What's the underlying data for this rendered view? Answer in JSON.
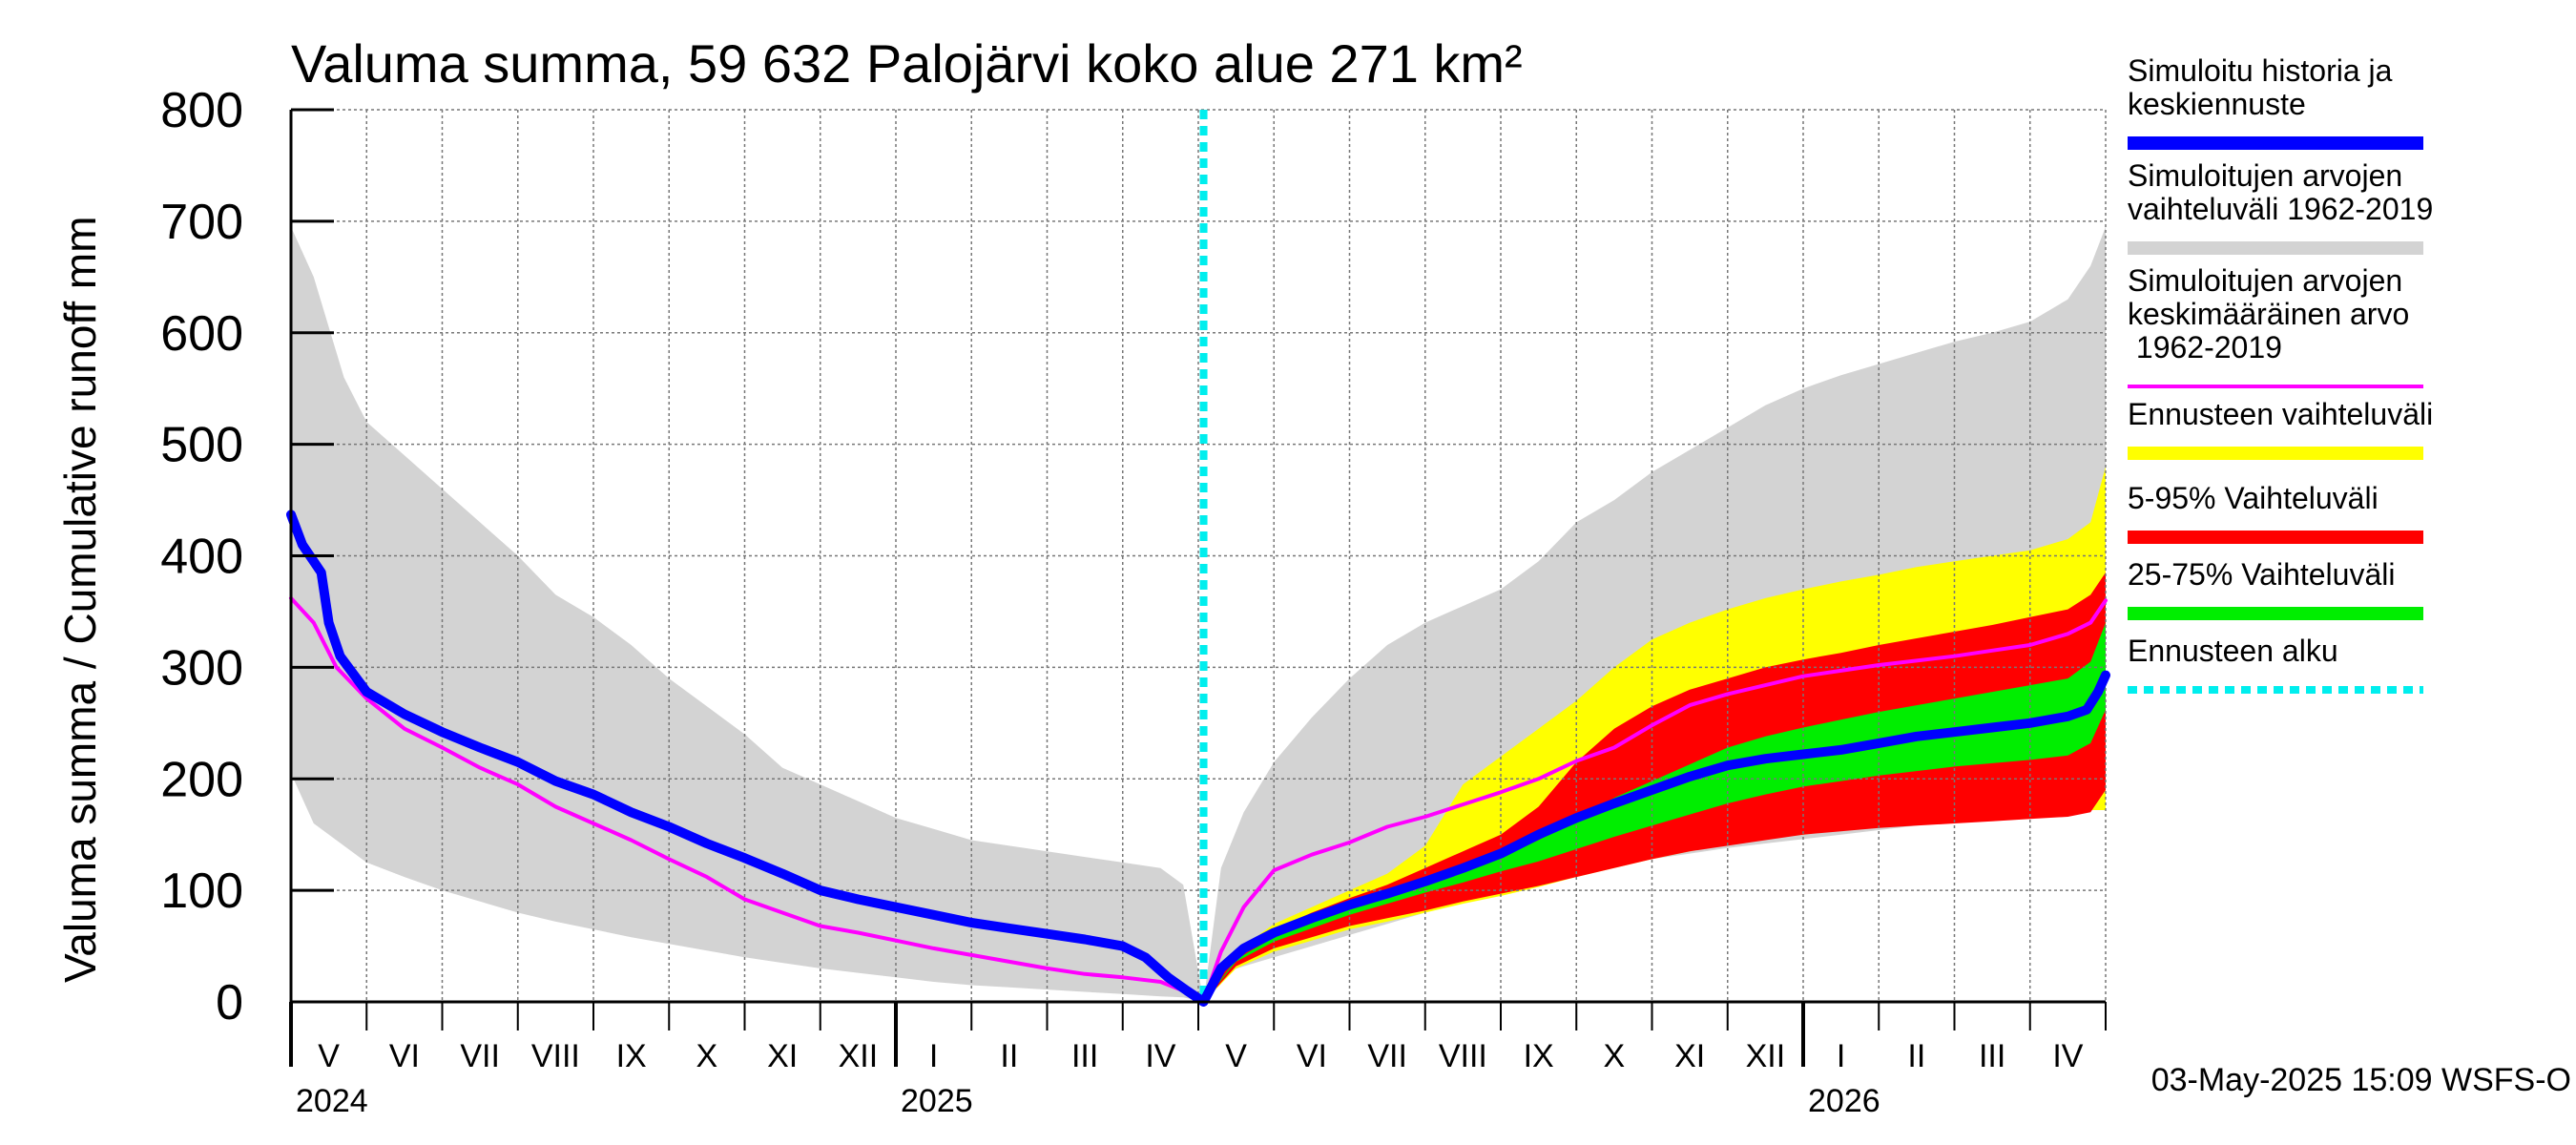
{
  "chart_data": {
    "type": "area",
    "title": "Valuma summa, 59 632 Palojärvi koko alue 271 km²",
    "ylabel": "Valuma summa / Cumulative runoff    mm",
    "xlabel": "",
    "ylim": [
      0,
      800
    ],
    "yticks": [
      "0",
      "100",
      "200",
      "300",
      "400",
      "500",
      "600",
      "700",
      "800"
    ],
    "x_unit": "months since 2024-05-01",
    "xlim": [
      0,
      24
    ],
    "month_labels": [
      "V",
      "VI",
      "VII",
      "VIII",
      "IX",
      "X",
      "XI",
      "XII",
      "I",
      "II",
      "III",
      "IV",
      "V",
      "VI",
      "VII",
      "VIII",
      "IX",
      "X",
      "XI",
      "XII",
      "I",
      "II",
      "III",
      "IV"
    ],
    "year_labels": [
      {
        "label": "2024",
        "at": 0
      },
      {
        "label": "2025",
        "at": 8
      },
      {
        "label": "2026",
        "at": 20
      }
    ],
    "forecast_start": 12.07,
    "series": [
      {
        "name": "Simuloitujen arvojen vaihteluväli 1962-2019",
        "kind": "band",
        "color": "#d3d3d3",
        "x": [
          0,
          0.3,
          0.7,
          1,
          1.5,
          2,
          2.5,
          3,
          3.5,
          4,
          4.5,
          5,
          5.5,
          6,
          6.5,
          7,
          7.5,
          8,
          8.5,
          9,
          9.5,
          10,
          10.5,
          11,
          11.5,
          11.8,
          12.07,
          12.3,
          12.6,
          13,
          13.5,
          14,
          14.5,
          15,
          15.5,
          16,
          16.5,
          17,
          17.5,
          18,
          18.5,
          19,
          19.5,
          20,
          20.5,
          21,
          21.5,
          22,
          22.5,
          23,
          23.5,
          23.8,
          24
        ],
        "upper": [
          695,
          650,
          560,
          520,
          490,
          460,
          430,
          400,
          365,
          345,
          320,
          290,
          265,
          240,
          210,
          195,
          180,
          165,
          155,
          145,
          140,
          135,
          130,
          125,
          120,
          105,
          0,
          120,
          170,
          215,
          255,
          290,
          320,
          340,
          355,
          370,
          395,
          430,
          450,
          475,
          495,
          515,
          535,
          550,
          562,
          572,
          582,
          592,
          600,
          610,
          630,
          660,
          695
        ],
        "lower": [
          205,
          160,
          140,
          125,
          112,
          100,
          90,
          80,
          72,
          65,
          58,
          52,
          46,
          40,
          35,
          30,
          26,
          22,
          18,
          15,
          13,
          11,
          9,
          7,
          5,
          4,
          0,
          25,
          32,
          40,
          50,
          60,
          70,
          80,
          90,
          100,
          108,
          115,
          122,
          128,
          133,
          138,
          142,
          146,
          150,
          154,
          158,
          162,
          166,
          170,
          175,
          185,
          200
        ]
      },
      {
        "name": "Ennusteen vaihteluväli",
        "kind": "band",
        "color": "#ffff00",
        "x": [
          12.07,
          12.5,
          13,
          13.5,
          14,
          14.5,
          15,
          15.5,
          16,
          16.5,
          17,
          17.5,
          18,
          18.5,
          19,
          19.5,
          20,
          20.5,
          21,
          21.5,
          22,
          22.5,
          23,
          23.5,
          23.8,
          24
        ],
        "upper": [
          0,
          45,
          70,
          85,
          100,
          115,
          140,
          195,
          220,
          245,
          270,
          300,
          325,
          340,
          352,
          362,
          370,
          377,
          383,
          390,
          395,
          400,
          405,
          415,
          430,
          480
        ],
        "lower": [
          0,
          30,
          45,
          55,
          65,
          72,
          80,
          88,
          95,
          103,
          112,
          120,
          128,
          135,
          141,
          146,
          150,
          154,
          158,
          161,
          164,
          166,
          168,
          170,
          172,
          172
        ]
      },
      {
        "name": "5-95% Vaihteluväli",
        "kind": "band",
        "color": "#ff0000",
        "x": [
          12.07,
          12.5,
          13,
          13.5,
          14,
          14.5,
          15,
          15.5,
          16,
          16.5,
          17,
          17.5,
          18,
          18.5,
          19,
          19.5,
          20,
          20.5,
          21,
          21.5,
          22,
          22.5,
          23,
          23.5,
          23.8,
          24
        ],
        "upper": [
          0,
          42,
          65,
          80,
          93,
          105,
          120,
          135,
          150,
          175,
          215,
          245,
          265,
          280,
          290,
          300,
          307,
          313,
          320,
          326,
          332,
          338,
          345,
          352,
          365,
          385
        ],
        "lower": [
          0,
          32,
          48,
          58,
          68,
          75,
          82,
          90,
          97,
          104,
          112,
          120,
          128,
          135,
          140,
          145,
          150,
          153,
          156,
          158,
          160,
          162,
          164,
          166,
          170,
          190
        ]
      },
      {
        "name": "25-75% Vaihteluväli",
        "kind": "band",
        "color": "#00ee00",
        "x": [
          12.07,
          12.5,
          13,
          13.5,
          14,
          14.5,
          15,
          15.5,
          16,
          16.5,
          17,
          17.5,
          18,
          18.5,
          19,
          19.5,
          20,
          20.5,
          21,
          21.5,
          22,
          22.5,
          23,
          23.5,
          23.8,
          24
        ],
        "upper": [
          0,
          38,
          58,
          72,
          84,
          95,
          107,
          118,
          130,
          145,
          163,
          183,
          198,
          213,
          228,
          238,
          246,
          253,
          260,
          266,
          272,
          278,
          284,
          290,
          305,
          340
        ],
        "lower": [
          0,
          36,
          54,
          66,
          78,
          88,
          98,
          107,
          117,
          126,
          137,
          148,
          158,
          168,
          178,
          186,
          193,
          198,
          203,
          207,
          211,
          214,
          217,
          221,
          232,
          262
        ]
      },
      {
        "name": "Simuloitujen arvojen keskimääräinen arvo 1962-2019",
        "kind": "line",
        "color": "#ff00ff",
        "width": 4,
        "x": [
          0,
          0.3,
          0.6,
          1,
          1.5,
          2,
          2.5,
          3,
          3.5,
          4,
          4.5,
          5,
          5.5,
          6,
          6.5,
          7,
          7.5,
          8,
          8.5,
          9,
          9.5,
          10,
          10.5,
          11,
          11.5,
          11.8,
          12.07,
          12.3,
          12.6,
          13,
          13.5,
          14,
          14.5,
          15,
          15.5,
          16,
          16.5,
          17,
          17.5,
          18,
          18.5,
          19,
          19.5,
          20,
          20.5,
          21,
          21.5,
          22,
          22.5,
          23,
          23.5,
          23.8,
          24
        ],
        "values": [
          362,
          340,
          300,
          272,
          245,
          228,
          210,
          195,
          175,
          160,
          145,
          128,
          112,
          92,
          80,
          68,
          62,
          55,
          48,
          42,
          36,
          30,
          25,
          22,
          18,
          10,
          0,
          45,
          85,
          118,
          132,
          143,
          157,
          166,
          177,
          188,
          200,
          216,
          228,
          248,
          266,
          276,
          284,
          292,
          297,
          302,
          306,
          310,
          315,
          320,
          330,
          340,
          360
        ]
      },
      {
        "name": "Simuloitu historia ja keskiennuste",
        "kind": "line",
        "color": "#0000ff",
        "width": 10,
        "x": [
          0,
          0.15,
          0.4,
          0.5,
          0.65,
          1,
          1.5,
          2,
          2.5,
          3,
          3.5,
          4,
          4.5,
          5,
          5.5,
          6,
          6.5,
          7,
          7.5,
          8,
          8.5,
          9,
          9.5,
          10,
          10.5,
          11,
          11.3,
          11.6,
          11.85,
          12.07,
          12.3,
          12.6,
          13,
          13.5,
          14,
          14.5,
          15,
          15.5,
          16,
          16.5,
          17,
          17.5,
          18,
          18.5,
          19,
          19.5,
          20,
          20.5,
          21,
          21.5,
          22,
          22.5,
          23,
          23.5,
          23.75,
          23.9,
          24
        ],
        "values": [
          437,
          410,
          385,
          340,
          310,
          278,
          258,
          242,
          228,
          215,
          198,
          186,
          170,
          157,
          142,
          129,
          115,
          100,
          92,
          85,
          78,
          71,
          66,
          61,
          56,
          50,
          40,
          22,
          10,
          0,
          30,
          48,
          62,
          75,
          87,
          97,
          108,
          120,
          133,
          150,
          165,
          178,
          190,
          202,
          212,
          218,
          222,
          226,
          232,
          238,
          242,
          246,
          250,
          256,
          262,
          278,
          293
        ]
      }
    ]
  },
  "legend": {
    "items": [
      {
        "label": "Simuloitu historia ja keskiennuste",
        "color": "#0000ff",
        "style": "solid"
      },
      {
        "label": "Simuloitujen arvojen vaihteluväli 1962-2019",
        "color": "#d3d3d3",
        "style": "solid"
      },
      {
        "label": "Simuloitujen arvojen keskimääräinen arvo 1962-2019",
        "color": "#ff00ff",
        "style": "thin"
      },
      {
        "label": "Ennusteen vaihteluväli",
        "color": "#ffff00",
        "style": "solid"
      },
      {
        "label": "5-95% Vaihteluväli",
        "color": "#ff0000",
        "style": "solid"
      },
      {
        "label": "25-75% Vaihteluväli",
        "color": "#00ee00",
        "style": "solid"
      },
      {
        "label": "Ennusteen alku",
        "color": "#00eeee",
        "style": "dashed"
      }
    ]
  },
  "footer": "03-May-2025 15:09 WSFS-O",
  "colors": {
    "grid": "#777777",
    "forecast_line": "#00eeee",
    "background": "#ffffff"
  }
}
